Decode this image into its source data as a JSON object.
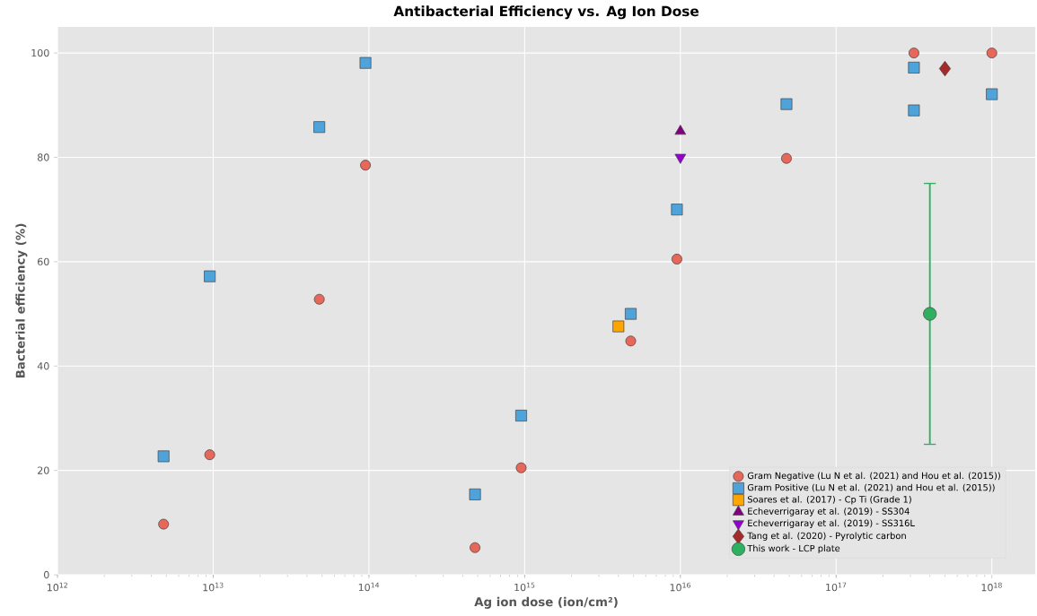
{
  "chart_data": {
    "type": "scatter",
    "title": "Antibacterial Efficiency vs. Ag Ion Dose",
    "xlabel": "Ag ion dose (ion/cm²)",
    "ylabel": "Bacterial efficiency (%)",
    "log": "x",
    "grid": true,
    "legend": "bottom right",
    "xlim": [
      1000000000000.0,
      1.9e+18
    ],
    "xticks": [
      {
        "value": 1000000000000.0,
        "label": "10$^{12}$"
      },
      {
        "value": 10000000000000.0,
        "label": "10$^{13}$"
      },
      {
        "value": 100000000000000.0,
        "label": "10$^{14}$"
      },
      {
        "value": 1000000000000000.0,
        "label": "10$^{15}$"
      },
      {
        "value": 1e+16,
        "label": "10$^{16}$"
      },
      {
        "value": 1e+17,
        "label": "10$^{17}$"
      },
      {
        "value": 1e+18,
        "label": "10$^{18}$"
      }
    ],
    "ylim": [
      0,
      105
    ],
    "yticks": [
      0,
      20,
      40,
      60,
      80,
      100
    ],
    "series": [
      {
        "name": "Gram Negative (Lu N et al. (2021) and Hou et al. (2015))",
        "color": "#e5685a",
        "marker": "circle",
        "x": [
          4800000000000.0,
          9500000000000.0,
          48000000000000.0,
          95000000000000.0,
          480000000000000.0,
          950000000000000.0,
          4800000000000000.0,
          9500000000000000.0,
          4.8e+16,
          3.16e+17,
          1e+18
        ],
        "values": [
          9.7,
          23,
          52.8,
          78.5,
          5.2,
          20.5,
          44.8,
          60.5,
          79.8,
          100,
          100
        ]
      },
      {
        "name": "Gram Positive (Lu N et al. (2021) and Hou et al. (2015))",
        "color": "#4ea3db",
        "marker": "square",
        "x": [
          4800000000000.0,
          9500000000000.0,
          48000000000000.0,
          95000000000000.0,
          480000000000000.0,
          950000000000000.0,
          4800000000000000.0,
          9500000000000000.0,
          4.8e+16,
          3.16e+17,
          3.16e+17,
          1e+18
        ],
        "values": [
          22.7,
          57.2,
          85.8,
          98.1,
          15.4,
          30.5,
          50,
          70,
          90.2,
          97.2,
          89,
          92.1
        ]
      },
      {
        "name": "Soares et al. (2017) - Cp Ti (Grade 1)",
        "color": "#ffa500",
        "marker": "square",
        "x": [
          4000000000000000.0
        ],
        "values": [
          47.6
        ]
      },
      {
        "name": "Echeverrigaray et al. (2019) - SS304",
        "color": "#800080",
        "marker": "triangle",
        "x": [
          1e+16
        ],
        "values": [
          85
        ]
      },
      {
        "name": "Echeverrigaray et al. (2019) - SS316L",
        "color": "#9400d3",
        "marker": "triangle-down",
        "x": [
          1e+16
        ],
        "values": [
          80
        ]
      },
      {
        "name": "Tang et al. (2020) - Pyrolytic carbon",
        "color": "#a52a2a",
        "marker": "diamond",
        "x": [
          5e+17
        ],
        "values": [
          97
        ]
      },
      {
        "name": "This work - LCP plate",
        "color": "#2eb060",
        "marker": "circle",
        "x": [
          4e+17
        ],
        "values": [
          50
        ],
        "errors": [
          25
        ]
      }
    ]
  }
}
